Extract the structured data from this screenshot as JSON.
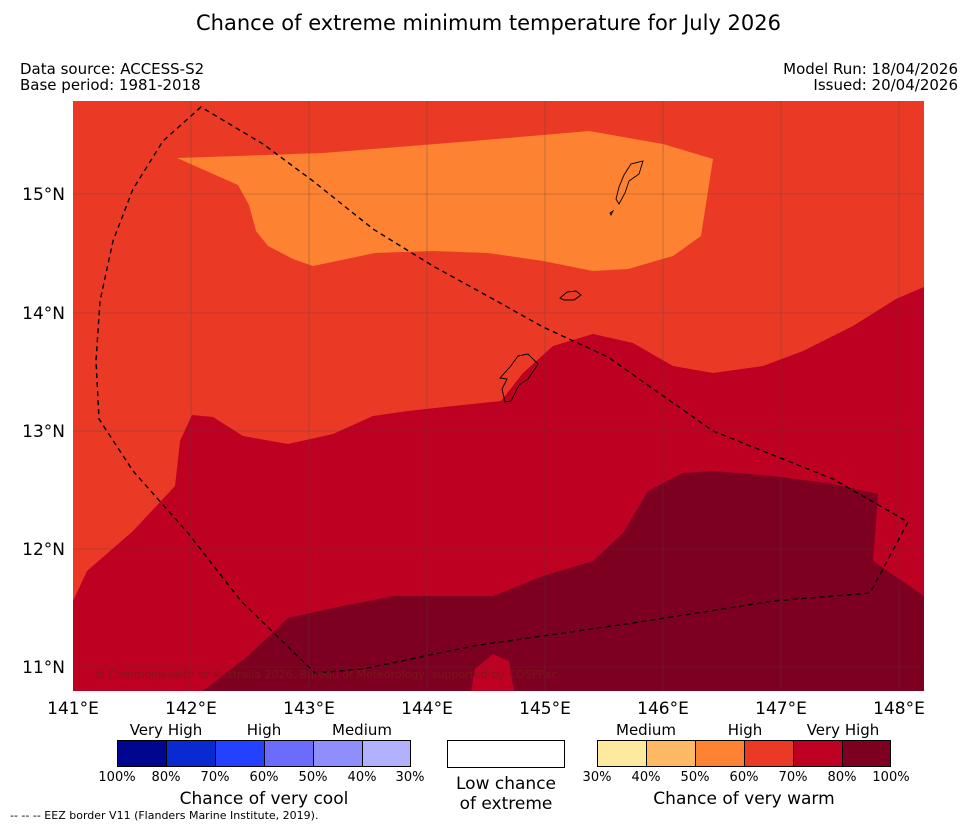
{
  "title": "Chance of extreme minimum temperature for July 2026",
  "meta": {
    "data_source": "Data source: ACCESS-S2",
    "base_period": "Base period: 1981-2018",
    "model_run": "Model Run: 18/04/2026",
    "issued": "Issued: 20/04/2026"
  },
  "axes": {
    "lat_labels": [
      "15°N",
      "14°N",
      "13°N",
      "12°N",
      "11°N"
    ],
    "lon_labels": [
      "141°E",
      "142°E",
      "143°E",
      "144°E",
      "145°E",
      "146°E",
      "147°E",
      "148°E"
    ]
  },
  "map": {
    "copyright": "© Commonwealth of Australia 2026, Bureau of Meteorology, supported by COSPPac",
    "colors": {
      "warm_40_50": "#fd8231",
      "warm_50_60": "#ea3a25",
      "warm_60_70": "#be0022",
      "warm_70_80": "#7d0020"
    }
  },
  "legend": {
    "cool": {
      "category_labels": [
        "Very High",
        "High",
        "Medium"
      ],
      "percent_labels": [
        "100%",
        "80%",
        "70%",
        "60%",
        "50%",
        "40%",
        "30%"
      ],
      "title": "Chance of very cool",
      "colors": [
        "#00068f",
        "#0a2ad1",
        "#2441ff",
        "#6b6cfb",
        "#8e8ffd",
        "#b1b1fe"
      ]
    },
    "low": {
      "line1": "Low chance",
      "line2": "of extreme"
    },
    "warm": {
      "category_labels": [
        "Medium",
        "High",
        "Very High"
      ],
      "percent_labels": [
        "30%",
        "40%",
        "50%",
        "60%",
        "70%",
        "80%",
        "100%"
      ],
      "title": "Chance of very warm",
      "colors": [
        "#feea9e",
        "#fdb963",
        "#fd8231",
        "#ea3a25",
        "#be0022",
        "#7d0020"
      ]
    }
  },
  "footnote": "-- -- -- EEZ border V11 (Flanders Marine Institute, 2019)."
}
